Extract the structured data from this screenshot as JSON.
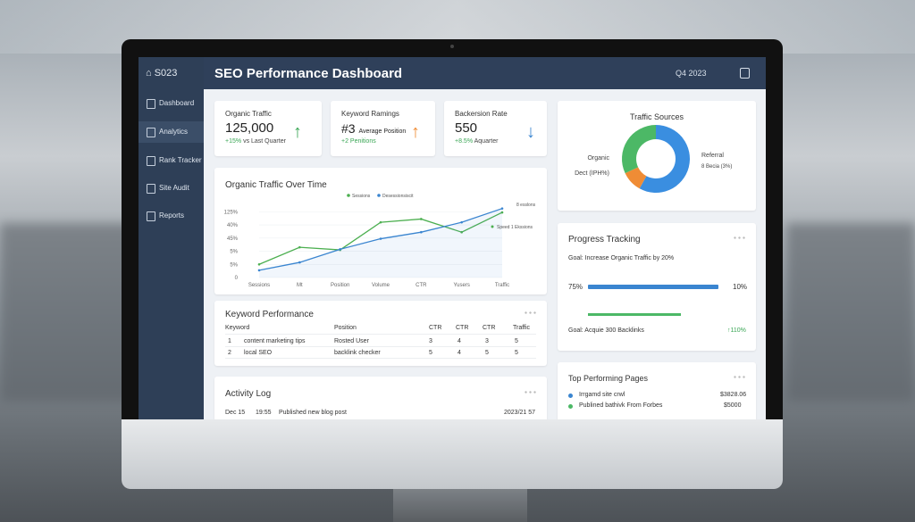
{
  "sidebar": {
    "brand": "S023",
    "items": [
      "Dashboard",
      "Analytics",
      "Rank Tracker",
      "Site Audit",
      "Reports"
    ]
  },
  "header": {
    "title": "SEO Performance Dashboard",
    "period": "Q4 2023"
  },
  "kpis": [
    {
      "label": "Organic Traffic",
      "value": "125,000",
      "delta": "+15%",
      "note": "vs Last Quarter"
    },
    {
      "label": "Keyword Ramings",
      "value": "#3",
      "sub": "Average Position",
      "delta": "+2 Penitions"
    },
    {
      "label": "Backersion Rate",
      "value": "550",
      "delta": "+8.5%",
      "note": "Aquarter"
    }
  ],
  "chart_data": {
    "type": "line",
    "title": "Organic Traffic Over Time",
    "categories": [
      "Sessions",
      "Mt",
      "Position",
      "Volume",
      "CTR",
      "Yusers",
      "Traffic"
    ],
    "series": [
      {
        "name": "Sessions",
        "color": "#4caf50",
        "values": [
          20,
          46,
          42,
          84,
          89,
          69,
          99
        ]
      },
      {
        "name": "Desessionsiscit",
        "color": "#3a85d0",
        "values": [
          11,
          23,
          43,
          59,
          69,
          84,
          105
        ]
      }
    ],
    "ylim": [
      0,
      110
    ],
    "yticks": [
      {
        "value": 100,
        "label": "125%"
      },
      {
        "value": 80,
        "label": "40%"
      },
      {
        "value": 60,
        "label": "45%"
      },
      {
        "value": 40,
        "label": "5%"
      },
      {
        "value": 20,
        "label": "5%"
      },
      0
    ],
    "annotations": [
      "8 esslons",
      "Speed 1 Ekssions"
    ]
  },
  "traffic_sources": {
    "title": "Traffic Sources",
    "segments": [
      {
        "name": "Referral",
        "value": 58,
        "color": "#3a8ee0"
      },
      {
        "name": "Dect (IPH%)",
        "value": 10,
        "color": "#ef8c35"
      },
      {
        "name": "Organic",
        "value": 32,
        "color": "#4cb866"
      }
    ],
    "extra_label": "8 Becia (3%)"
  },
  "progress": {
    "title": "Progress Tracking",
    "goal1": "Goal: Increase Organic Traffic by 20%",
    "left": "75%",
    "right": "10%",
    "goal2": "Goal: Acquie 300 Backlinks",
    "goal2_value": "↑110%"
  },
  "keywords": {
    "title": "Keyword Performance",
    "headers": [
      "Keyword",
      "Position",
      "CTR",
      "CTR",
      "CTR",
      "Traffic"
    ],
    "rows": [
      [
        "1",
        "content marketing tips",
        "Rosted User",
        "3",
        "4",
        "3",
        "5"
      ],
      [
        "2",
        "local SEO",
        "backlink checker",
        "5",
        "4",
        "5",
        "5"
      ]
    ]
  },
  "activity": {
    "title": "Activity Log",
    "rows": [
      [
        "Dec 15",
        "19:55",
        "Published new blog post",
        "2023/21 57"
      ]
    ]
  },
  "top_pages": {
    "title": "Top Performing Pages",
    "rows": [
      [
        "Irrgamd site crwl",
        "$3828.06"
      ],
      [
        "Publined bathivk From Forbes",
        "$5000"
      ]
    ]
  }
}
